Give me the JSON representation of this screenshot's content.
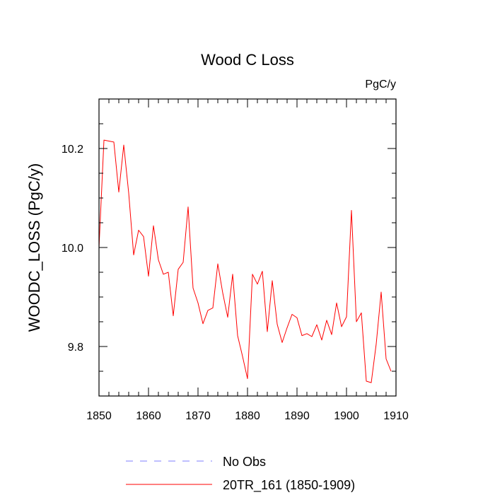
{
  "chart_data": {
    "type": "line",
    "title": "Wood C Loss",
    "units_label": "PgC/y",
    "xlabel": "",
    "ylabel": "WOODC_LOSS  (PgC/y)",
    "xlim": [
      1850,
      1910
    ],
    "ylim": [
      9.7,
      10.3
    ],
    "x_ticks": [
      1850,
      1860,
      1870,
      1880,
      1890,
      1900,
      1910
    ],
    "x_tick_labels": [
      "1850",
      "1860",
      "1870",
      "1880",
      "1890",
      "1900",
      "1910"
    ],
    "x_minor_step": 2,
    "y_ticks": [
      9.8,
      10.0,
      10.2
    ],
    "y_tick_labels": [
      "9.8",
      "10.0",
      "10.2"
    ],
    "y_minor_step": 0.05,
    "grid": false,
    "legend_position": "bottom",
    "series": [
      {
        "name": "No Obs",
        "style": "dashed",
        "color": "#7f7fff",
        "x": [],
        "values": []
      },
      {
        "name": "20TR_161 (1850-1909)",
        "style": "solid",
        "color": "#ff0000",
        "x": [
          1850,
          1851,
          1852,
          1853,
          1854,
          1855,
          1856,
          1857,
          1858,
          1859,
          1860,
          1861,
          1862,
          1863,
          1864,
          1865,
          1866,
          1867,
          1868,
          1869,
          1870,
          1871,
          1872,
          1873,
          1874,
          1875,
          1876,
          1877,
          1878,
          1879,
          1880,
          1881,
          1882,
          1883,
          1884,
          1885,
          1886,
          1887,
          1888,
          1889,
          1890,
          1891,
          1892,
          1893,
          1894,
          1895,
          1896,
          1897,
          1898,
          1899,
          1900,
          1901,
          1902,
          1903,
          1904,
          1905,
          1906,
          1907,
          1908,
          1909
        ],
        "values": [
          10.0,
          10.217,
          10.215,
          10.213,
          10.112,
          10.207,
          10.11,
          9.985,
          10.035,
          10.022,
          9.942,
          10.044,
          9.975,
          9.946,
          9.95,
          9.862,
          9.956,
          9.97,
          10.082,
          9.918,
          9.888,
          9.846,
          9.873,
          9.878,
          9.967,
          9.908,
          9.859,
          9.946,
          9.822,
          9.78,
          9.735,
          9.946,
          9.926,
          9.952,
          9.83,
          9.933,
          9.845,
          9.808,
          9.838,
          9.865,
          9.858,
          9.822,
          9.826,
          9.82,
          9.844,
          9.813,
          9.853,
          9.824,
          9.888,
          9.84,
          9.86,
          10.075,
          9.85,
          9.868,
          9.73,
          9.727,
          9.805,
          9.91,
          9.775,
          9.75
        ]
      }
    ]
  }
}
